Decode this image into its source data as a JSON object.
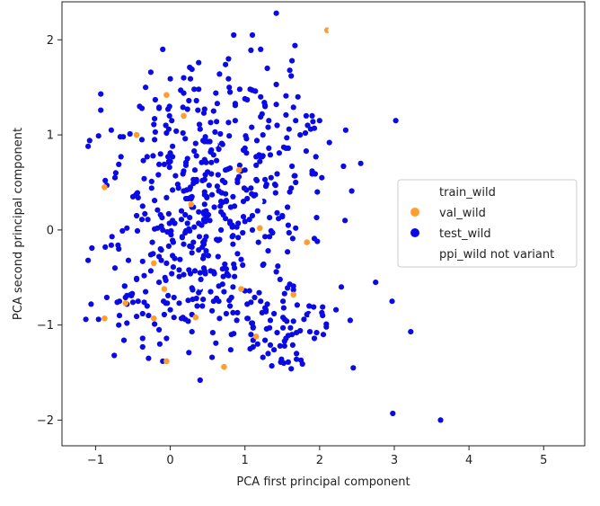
{
  "chart_data": {
    "type": "scatter",
    "xlabel": "PCA first principal component",
    "ylabel": "PCA second principal component",
    "xlim": [
      -1.45,
      5.55
    ],
    "ylim": [
      -2.27,
      2.4
    ],
    "x_ticks": [
      -1,
      0,
      1,
      2,
      3,
      4,
      5
    ],
    "y_ticks": [
      -2,
      -1,
      0,
      1,
      2
    ],
    "grid": false,
    "legend_position": "center-right",
    "series": [
      {
        "name": "train_wild",
        "color": "#ffffff",
        "marker": "circle",
        "points": [
          [
            2.15,
            2.1
          ],
          [
            -0.5,
            1.3
          ],
          [
            0.1,
            1.1
          ],
          [
            -0.8,
            0.4
          ],
          [
            0.6,
            0.9
          ],
          [
            1.2,
            0.3
          ],
          [
            -0.3,
            -0.2
          ],
          [
            0.4,
            -0.6
          ],
          [
            1.9,
            -0.9
          ],
          [
            -0.6,
            -0.9
          ],
          [
            0.9,
            -1.3
          ],
          [
            1.6,
            0.6
          ],
          [
            2.2,
            1.0
          ],
          [
            -0.2,
            1.5
          ],
          [
            0.3,
            -1.2
          ]
        ]
      },
      {
        "name": "val_wild",
        "color": "#ff9d2e",
        "marker": "circle",
        "points": [
          [
            2.1,
            2.1
          ],
          [
            -0.05,
            1.42
          ],
          [
            0.18,
            1.2
          ],
          [
            -0.45,
            1.0
          ],
          [
            0.92,
            0.63
          ],
          [
            0.28,
            0.27
          ],
          [
            -0.88,
            0.45
          ],
          [
            -0.22,
            -0.35
          ],
          [
            1.83,
            -0.13
          ],
          [
            0.95,
            -0.62
          ],
          [
            -0.08,
            -0.62
          ],
          [
            -0.88,
            -0.93
          ],
          [
            -0.22,
            -0.93
          ],
          [
            0.34,
            -0.92
          ],
          [
            1.65,
            -0.68
          ],
          [
            1.15,
            -1.12
          ],
          [
            -0.05,
            -1.38
          ],
          [
            0.72,
            -1.44
          ],
          [
            -0.6,
            -0.77
          ],
          [
            1.2,
            0.02
          ]
        ]
      },
      {
        "name": "test_wild",
        "color": "#0a0ae6",
        "marker": "circle",
        "points": []
      },
      {
        "name": "ppi_wild not variant",
        "color": "#ffffff",
        "marker": "circle",
        "points": []
      }
    ],
    "test_wild_generator": {
      "count": 620,
      "clusters": [
        {
          "cx": 0.3,
          "cy": 0.2,
          "sx": 0.7,
          "sy": 0.8,
          "weight": 0.78
        },
        {
          "cx": 1.6,
          "cy": -1.1,
          "sx": 0.35,
          "sy": 0.25,
          "weight": 0.12
        },
        {
          "cx": 1.5,
          "cy": 0.9,
          "sx": 0.45,
          "sy": 0.45,
          "weight": 0.1
        }
      ],
      "outliers": [
        [
          1.42,
          2.28
        ],
        [
          1.1,
          2.05
        ],
        [
          3.02,
          1.15
        ],
        [
          2.55,
          0.7
        ],
        [
          2.75,
          -0.55
        ],
        [
          3.22,
          -1.07
        ],
        [
          2.97,
          -0.75
        ],
        [
          2.98,
          -1.93
        ],
        [
          3.62,
          -2.0
        ],
        [
          2.45,
          -1.45
        ],
        [
          0.85,
          2.05
        ],
        [
          -0.1,
          1.9
        ],
        [
          2.35,
          1.05
        ],
        [
          0.4,
          -1.58
        ]
      ]
    }
  }
}
